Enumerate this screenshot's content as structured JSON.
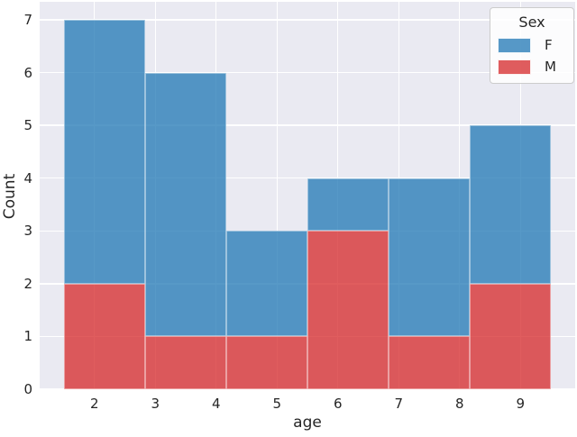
{
  "figure": {
    "background": "#ffffff",
    "axes_background": "#eaeaf2",
    "grid_color": "#ffffff",
    "text_color": "#262626"
  },
  "chart_data": {
    "type": "bar",
    "subtype": "stacked-histogram",
    "title": "",
    "xlabel": "age",
    "ylabel": "Count",
    "bin_edges": [
      1.5,
      2.8333,
      4.1667,
      5.5,
      6.8333,
      8.1667,
      9.5
    ],
    "series": [
      {
        "name": "M",
        "color": "rgba(214,39,40,0.75)",
        "values": [
          2,
          1,
          1,
          3,
          1,
          2
        ]
      },
      {
        "name": "F",
        "color": "rgba(31,119,180,0.75)",
        "values": [
          5,
          5,
          2,
          1,
          3,
          3
        ]
      }
    ],
    "totals": [
      7,
      6,
      3,
      4,
      4,
      5
    ],
    "xlim": [
      1.1,
      9.9
    ],
    "ylim": [
      0,
      7.34
    ],
    "x_ticks": [
      "2",
      "3",
      "4",
      "5",
      "6",
      "7",
      "8",
      "9"
    ],
    "x_tick_values": [
      2,
      3,
      4,
      5,
      6,
      7,
      8,
      9
    ],
    "y_ticks": [
      "0",
      "1",
      "2",
      "3",
      "4",
      "5",
      "6",
      "7"
    ],
    "y_tick_values": [
      0,
      1,
      2,
      3,
      4,
      5,
      6,
      7
    ],
    "grid": true,
    "legend": {
      "title": "Sex",
      "position": "upper right",
      "entries": [
        {
          "label": "F",
          "color": "rgba(31,119,180,0.75)"
        },
        {
          "label": "M",
          "color": "rgba(214,39,40,0.75)"
        }
      ]
    }
  }
}
